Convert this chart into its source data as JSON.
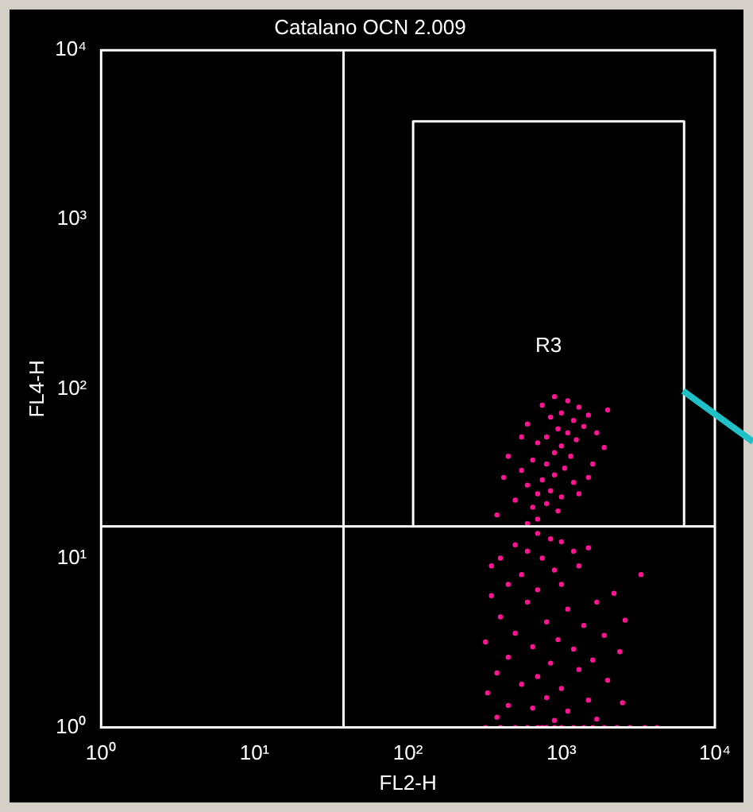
{
  "chart_data": {
    "type": "scatter",
    "title": "Catalano OCN 2.009",
    "xlabel": "FL2-H",
    "ylabel": "FL4-H",
    "log": "xy",
    "grid": false,
    "legend": false,
    "marker": "circle",
    "xlim": [
      1,
      10000
    ],
    "ylim": [
      1,
      10000
    ],
    "xticks": [
      {
        "value": 1,
        "label": "10⁰"
      },
      {
        "value": 10,
        "label": "10¹"
      },
      {
        "value": 100,
        "label": "10²"
      },
      {
        "value": 1000,
        "label": "10³"
      },
      {
        "value": 10000,
        "label": "10⁴"
      }
    ],
    "yticks": [
      {
        "value": 1,
        "label": "10⁰"
      },
      {
        "value": 10,
        "label": "10¹"
      },
      {
        "value": 100,
        "label": "10²"
      },
      {
        "value": 1000,
        "label": "10³"
      },
      {
        "value": 10000,
        "label": "10⁴"
      }
    ],
    "ref_lines": [
      {
        "axis": "x",
        "value": 38,
        "color": "#ffffff"
      },
      {
        "axis": "y",
        "value": 15.4,
        "color": "#ffffff"
      }
    ],
    "series": [
      {
        "type": "scatter",
        "color": "#ff1493",
        "x": [
          900,
          1100,
          750,
          1300,
          1000,
          850,
          1200,
          1500,
          600,
          950,
          1100,
          800,
          1400,
          1250,
          700,
          1000,
          900,
          1150,
          650,
          800,
          1050,
          550,
          900,
          750,
          1200,
          600,
          850,
          700,
          1000,
          500,
          800,
          650,
          950,
          420,
          1700,
          1900,
          1600,
          2000,
          450,
          550,
          380,
          700,
          1300,
          1500,
          600,
          700,
          850,
          500,
          1000,
          600,
          400,
          750,
          1200,
          1500,
          350,
          900,
          550,
          1300,
          3300,
          450,
          700,
          1000,
          2200,
          350,
          600,
          1100,
          1700,
          2600,
          400,
          800,
          1400,
          500,
          950,
          1900,
          320,
          650,
          1200,
          2400,
          450,
          850,
          1600,
          380,
          700,
          1300,
          2000,
          550,
          1000,
          330,
          800,
          1500,
          450,
          650,
          1100,
          2500,
          380,
          900,
          1700,
          320,
          400,
          500,
          600,
          700,
          750,
          800,
          900,
          1000,
          1200,
          1400,
          1600,
          1900,
          2300,
          2800,
          3500,
          4200
        ],
        "values": [
          90,
          85,
          80,
          78,
          72,
          68,
          65,
          70,
          62,
          58,
          55,
          52,
          60,
          50,
          48,
          46,
          42,
          40,
          38,
          36,
          34,
          33,
          31,
          29,
          28,
          27,
          25,
          24,
          23,
          22,
          21,
          20,
          19,
          30,
          55,
          45,
          36,
          75,
          40,
          52,
          18,
          17,
          24,
          30,
          16,
          14,
          13,
          12,
          12.5,
          11,
          10,
          10,
          11,
          11.5,
          9,
          8.5,
          8,
          9,
          8,
          7,
          6.5,
          7,
          6.2,
          6,
          5.5,
          5,
          5.5,
          4.3,
          4.5,
          4.2,
          4,
          3.6,
          3.3,
          3.5,
          3.2,
          3,
          2.9,
          2.8,
          2.6,
          2.4,
          2.5,
          2.1,
          2,
          2.2,
          1.9,
          1.8,
          1.7,
          1.6,
          1.5,
          1.45,
          1.35,
          1.3,
          1.25,
          1.4,
          1.15,
          1.1,
          1.12,
          1,
          1,
          1,
          1,
          1,
          1,
          1,
          1,
          1,
          1,
          1,
          1,
          1,
          1,
          1,
          1,
          1
        ]
      },
      {
        "type": "line",
        "name": "R3",
        "color": "#ffffff",
        "marker": "none",
        "x": [
          108,
          108,
          6300,
          6300
        ],
        "values": [
          15.4,
          3800,
          3800,
          15.4
        ]
      }
    ]
  }
}
